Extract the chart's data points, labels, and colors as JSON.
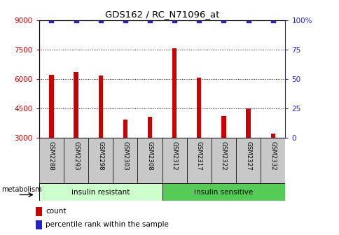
{
  "title": "GDS162 / RC_N71096_at",
  "samples": [
    "GSM2288",
    "GSM2293",
    "GSM2298",
    "GSM2303",
    "GSM2308",
    "GSM2312",
    "GSM2317",
    "GSM2322",
    "GSM2327",
    "GSM2332"
  ],
  "counts": [
    6200,
    6350,
    6150,
    3900,
    4050,
    7550,
    6050,
    4100,
    4500,
    3200
  ],
  "percentile_ranks": [
    100,
    100,
    100,
    100,
    100,
    100,
    100,
    100,
    100,
    100
  ],
  "ylim_left": [
    3000,
    9000
  ],
  "ylim_right": [
    0,
    100
  ],
  "yticks_left": [
    3000,
    4500,
    6000,
    7500,
    9000
  ],
  "yticks_right": [
    0,
    25,
    50,
    75,
    100
  ],
  "bar_color": "#cc0000",
  "percentile_color": "#2222cc",
  "bar_width": 0.18,
  "group_colors_ir": "#ccffcc",
  "group_colors_is": "#55cc55",
  "left_axis_color": "#cc0000",
  "right_axis_color": "#2222cc",
  "tick_label_bg": "#c8c8c8",
  "ir_label": "insulin resistant",
  "is_label": "insulin sensitive",
  "metabolism_label": "metabolism",
  "legend_count": "count",
  "legend_pct": "percentile rank within the sample"
}
